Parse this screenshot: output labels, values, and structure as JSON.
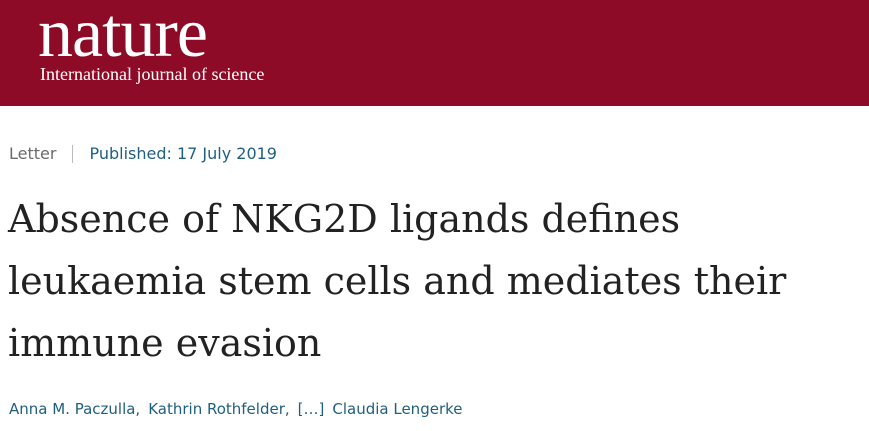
{
  "header": {
    "logo": "nature",
    "tagline": "International journal of science"
  },
  "article": {
    "type": "Letter",
    "published": "Published: 17 July 2019",
    "title_lines": [
      "Absence of NKG2D ligands defines",
      "leukaemia stem cells and mediates their",
      "immune evasion"
    ],
    "authors": [
      "Anna M. Paczulla,",
      "Kathrin Rothfelder,",
      "[…]",
      "Claudia Lengerke"
    ]
  }
}
